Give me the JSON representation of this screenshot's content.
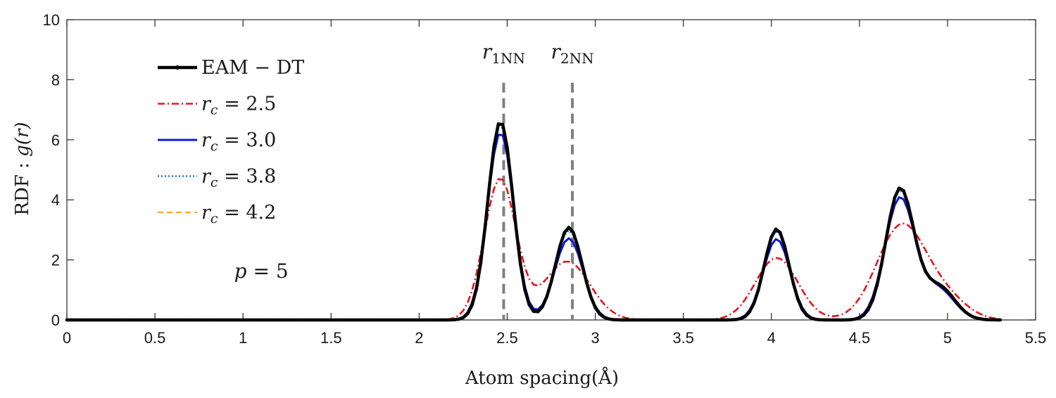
{
  "chart_data": {
    "type": "line",
    "xlabel": "Atom spacing(Å)",
    "ylabel_prefix": "RDF : ",
    "ylabel_math": "g(r)",
    "xlim": [
      0,
      5.5
    ],
    "ylim": [
      0,
      10
    ],
    "xticks": [
      0,
      0.5,
      1,
      1.5,
      2,
      2.5,
      3,
      3.5,
      4,
      4.5,
      5,
      5.5
    ],
    "xtick_labels": [
      "0",
      "0.5",
      "1",
      "1.5",
      "2",
      "2.5",
      "3",
      "3.5",
      "4",
      "4.5",
      "5",
      "5.5"
    ],
    "yticks": [
      0,
      2,
      4,
      6,
      8,
      10
    ],
    "ytick_labels": [
      "0",
      "2",
      "4",
      "6",
      "8",
      "10"
    ],
    "x_range": [
      0,
      5.3
    ],
    "legend_position": "upper-left",
    "annotation": {
      "var": "p",
      "text": " = 5",
      "x": 0.95,
      "y": 1.4
    },
    "vlines": [
      {
        "x": 2.48,
        "label_var": "r",
        "label_sub": "1NN",
        "color": "#808080"
      },
      {
        "x": 2.87,
        "label_var": "r",
        "label_sub": "2NN",
        "color": "#808080"
      }
    ],
    "series": [
      {
        "name": "EAM − DT",
        "var": "",
        "text": "EAM − DT",
        "color": "#000000",
        "dash": "",
        "width": 4.5,
        "markers": true,
        "peaks": [
          [
            2.462,
            0.071,
            6.62
          ],
          [
            2.85,
            0.075,
            3.08
          ],
          [
            4.03,
            0.07,
            3.03
          ],
          [
            4.73,
            0.08,
            4.35
          ],
          [
            4.95,
            0.09,
            1.1
          ]
        ]
      },
      {
        "name": "r_c = 2.5",
        "var": "r",
        "sub": "c",
        "text": " = 2.5",
        "color": "#e8141b",
        "dash": "10,4,2,4",
        "width": 2.6,
        "markers": false,
        "peaks": [
          [
            2.46,
            0.09,
            4.7
          ],
          [
            2.84,
            0.13,
            1.95
          ],
          [
            4.03,
            0.12,
            2.07
          ],
          [
            4.74,
            0.14,
            3.15
          ],
          [
            5.0,
            0.12,
            0.6
          ]
        ]
      },
      {
        "name": "r_c = 3.0",
        "var": "r",
        "sub": "c",
        "text": " = 3.0",
        "color": "#0e17e0",
        "dash": "",
        "width": 3,
        "markers": false,
        "peaks": [
          [
            2.462,
            0.074,
            6.25
          ],
          [
            2.85,
            0.08,
            2.72
          ],
          [
            4.03,
            0.075,
            2.7
          ],
          [
            4.73,
            0.085,
            4.05
          ],
          [
            4.95,
            0.09,
            1.0
          ]
        ]
      },
      {
        "name": "r_c = 3.8",
        "var": "r",
        "sub": "c",
        "text": " = 3.8",
        "color": "#1f77c4",
        "dash": "2,3",
        "width": 2.6,
        "markers": false,
        "peaks": [
          [
            2.462,
            0.072,
            6.5
          ],
          [
            2.85,
            0.076,
            2.98
          ],
          [
            4.03,
            0.071,
            2.95
          ],
          [
            4.73,
            0.081,
            4.28
          ],
          [
            4.95,
            0.09,
            1.07
          ]
        ]
      },
      {
        "name": "r_c = 4.2",
        "var": "r",
        "sub": "c",
        "text": " = 4.2",
        "color": "#f0b020",
        "dash": "8,5",
        "width": 2.2,
        "markers": false,
        "peaks": [
          [
            2.462,
            0.071,
            6.58
          ],
          [
            2.85,
            0.075,
            3.05
          ],
          [
            4.03,
            0.07,
            3.0
          ],
          [
            4.73,
            0.08,
            4.32
          ],
          [
            4.95,
            0.09,
            1.09
          ]
        ]
      }
    ]
  }
}
